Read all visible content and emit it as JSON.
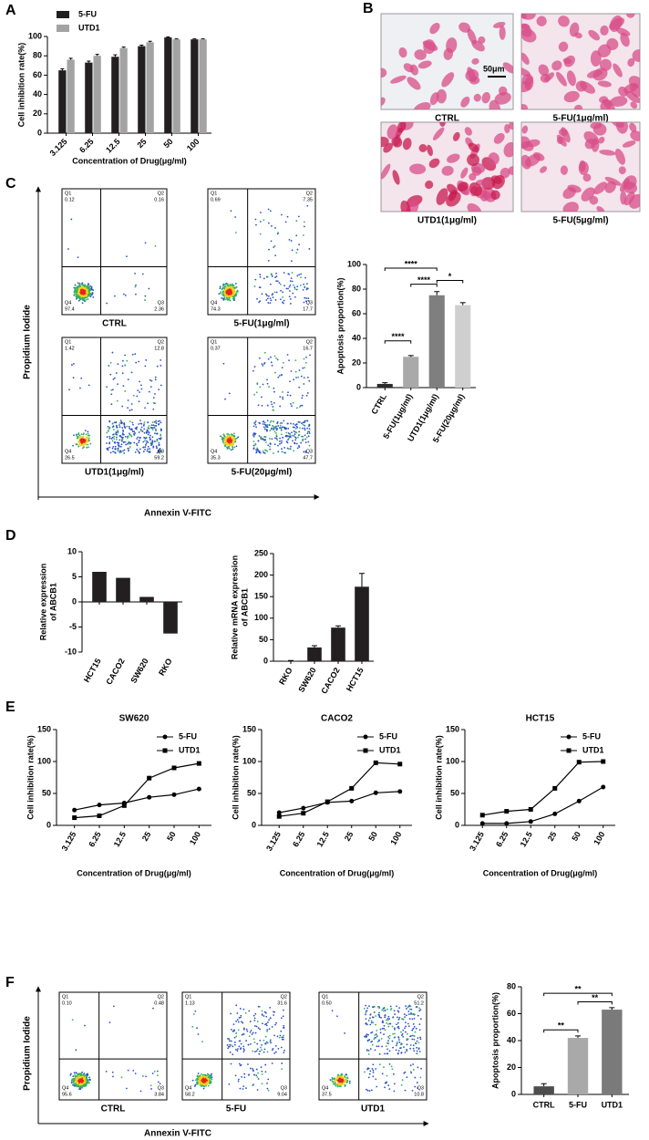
{
  "panel_labels": [
    "A",
    "B",
    "C",
    "D",
    "E",
    "F"
  ],
  "micrographs": {
    "scale_bar": "50μm",
    "captions": [
      "CTRL",
      "5-FU(1μg/ml)",
      "UTD1(1μg/ml)",
      "5-FU(5μg/ml)"
    ]
  },
  "chart_data": [
    {
      "type": "bar",
      "categories": [
        "3.125",
        "6.25",
        "12.5",
        "25",
        "50",
        "100"
      ],
      "series": [
        {
          "name": "5-FU",
          "color": "#231f20",
          "values": [
            65,
            73,
            79,
            90,
            99,
            97
          ],
          "errors": [
            1.5,
            1.5,
            2,
            1,
            0.5,
            0.5
          ]
        },
        {
          "name": "UTD1",
          "color": "#a3a3a3",
          "values": [
            76,
            80,
            88,
            94,
            97,
            97
          ],
          "errors": [
            1.5,
            1.5,
            1,
            1,
            0.5,
            0.5
          ]
        }
      ],
      "ylim": [
        0,
        100
      ],
      "yticks": [
        0,
        20,
        40,
        60,
        80,
        100
      ],
      "legend": "upper left",
      "y_label": "Cell inhibition rate(%)",
      "x_label": "Concentration of Drug(μg/ml)"
    },
    {
      "type": "flow",
      "y_label": "Propidium Iodide",
      "x_label": "Annexin V-FITC",
      "quadrant_names": [
        "Q1",
        "Q2",
        "Q3",
        "Q4"
      ],
      "panels": [
        {
          "name": "CTRL",
          "values": [
            0.12,
            0.16,
            2.36,
            97.4
          ],
          "value_labels": [
            "0.12",
            "0.16",
            "2.36",
            "97.4"
          ]
        },
        {
          "name": "5-FU(1μg/ml)",
          "values": [
            0.69,
            7.35,
            17.7,
            74.3
          ],
          "value_labels": [
            "0.69",
            "7.35",
            "17.7",
            "74.3"
          ]
        },
        {
          "name": "UTD1(1μg/ml)",
          "values": [
            1.42,
            12.8,
            59.2,
            26.5
          ],
          "value_labels": [
            "1.42",
            "12.8",
            "59.2",
            "26.5"
          ]
        },
        {
          "name": "5-FU(20μg/ml)",
          "values": [
            0.37,
            16.7,
            47.7,
            35.3
          ],
          "value_labels": [
            "0.37",
            "16.7",
            "47.7",
            "35.3"
          ]
        }
      ]
    },
    {
      "type": "bar",
      "categories": [
        "CTRL",
        "5-FU(1μg/ml)",
        "UTD1(1μg/ml)",
        "5-FU(20μg/ml)"
      ],
      "values": [
        3,
        25,
        75,
        67
      ],
      "errors": [
        1,
        1,
        3,
        2
      ],
      "colors": [
        "#2b2b2b",
        "#a9a9a9",
        "#7f7f7f",
        "#cfcfcf"
      ],
      "ylim": [
        0,
        100
      ],
      "yticks": [
        0,
        20,
        40,
        60,
        80,
        100
      ],
      "y_label": "Apoptosis proportion(%)",
      "annotations": [
        "****",
        "****",
        "*",
        "****"
      ]
    },
    {
      "type": "bar",
      "categories": [
        "HCT15",
        "CACO2",
        "SW620",
        "RKO"
      ],
      "values": [
        6,
        4.8,
        1,
        -6.3
      ],
      "color": "#231f20",
      "ylim": [
        -10,
        10
      ],
      "yticks": [
        -10,
        -5,
        0,
        5,
        10
      ],
      "y_label": [
        "Relative expression",
        "of ABCB1"
      ]
    },
    {
      "type": "bar",
      "categories": [
        "RKO",
        "SW620",
        "CACO2",
        "HCT15"
      ],
      "values": [
        1,
        32,
        78,
        173
      ],
      "errors": [
        0.5,
        4,
        4,
        31
      ],
      "color": "#231f20",
      "ylim": [
        0,
        250
      ],
      "yticks": [
        0,
        50,
        100,
        150,
        200,
        250
      ],
      "y_label": [
        "Relative mRNA expression",
        "of ABCB1"
      ]
    },
    {
      "type": "line",
      "title": "SW620",
      "categories": [
        "3.125",
        "6.25",
        "12.5",
        "25",
        "50",
        "100"
      ],
      "series": [
        {
          "name": "5-FU",
          "color": "#000000",
          "marker": "circle",
          "values": [
            24,
            32,
            35,
            44,
            48,
            57
          ]
        },
        {
          "name": "UTD1",
          "color": "#000000",
          "marker": "square",
          "values": [
            12,
            15,
            31,
            74,
            90,
            97
          ]
        }
      ],
      "ylim": [
        0,
        150
      ],
      "yticks": [
        0,
        50,
        100,
        150
      ],
      "legend": "upper right",
      "y_label": "Cell inhibition rate(%)",
      "x_label": "Concentration of Drug(μg/ml)"
    },
    {
      "type": "line",
      "title": "CACO2",
      "categories": [
        "3.125",
        "6.25",
        "12.5",
        "25",
        "50",
        "100"
      ],
      "series": [
        {
          "name": "5-FU",
          "color": "#000000",
          "marker": "circle",
          "values": [
            20,
            27,
            36,
            38,
            51,
            53
          ]
        },
        {
          "name": "UTD1",
          "color": "#000000",
          "marker": "square",
          "values": [
            14,
            19,
            37,
            58,
            98,
            96
          ]
        }
      ],
      "ylim": [
        0,
        150
      ],
      "yticks": [
        0,
        50,
        100,
        150
      ],
      "legend": "upper right",
      "y_label": "Cell inhibition rate(%)",
      "x_label": "Concentration of Drug(μg/ml)"
    },
    {
      "type": "line",
      "title": "HCT15",
      "categories": [
        "3.125",
        "6.25",
        "12.5",
        "25",
        "50",
        "100"
      ],
      "series": [
        {
          "name": "5-FU",
          "color": "#000000",
          "marker": "circle",
          "values": [
            3,
            3,
            6,
            18,
            38,
            60
          ]
        },
        {
          "name": "UTD1",
          "color": "#000000",
          "marker": "square",
          "values": [
            16,
            22,
            25,
            58,
            99,
            100
          ]
        }
      ],
      "ylim": [
        0,
        150
      ],
      "yticks": [
        0,
        50,
        100,
        150
      ],
      "legend": "upper right",
      "y_label": "Cell inhibition rate(%)",
      "x_label": "Concentration of Drug(μg/ml)"
    },
    {
      "type": "flow",
      "y_label": "Propidium Iodide",
      "x_label": "Annexin V-FITC",
      "quadrant_names": [
        "Q1",
        "Q2",
        "Q3",
        "Q4"
      ],
      "panels": [
        {
          "name": "CTRL",
          "values": [
            0.1,
            0.48,
            3.84,
            95.6
          ],
          "value_labels": [
            "0.10",
            "0.48",
            "3.84",
            "95.6"
          ]
        },
        {
          "name": "5-FU",
          "values": [
            1.13,
            31.6,
            9.04,
            58.2
          ],
          "value_labels": [
            "1.13",
            "31.6",
            "9.04",
            "58.2"
          ]
        },
        {
          "name": "UTD1",
          "values": [
            0.5,
            51.2,
            10.8,
            37.5
          ],
          "value_labels": [
            "0.50",
            "51.2",
            "10.8",
            "37.5"
          ]
        }
      ]
    },
    {
      "type": "bar",
      "categories": [
        "CTRL",
        "5-FU",
        "UTD1"
      ],
      "values": [
        6,
        42,
        63
      ],
      "errors": [
        2,
        1.5,
        1.5
      ],
      "colors": [
        "#4d4d4d",
        "#a9a9a9",
        "#7a7a7a"
      ],
      "ylim": [
        0,
        80
      ],
      "yticks": [
        0,
        20,
        40,
        60,
        80
      ],
      "y_label": "Apoptosis proportion(%)",
      "annotations": [
        "**",
        "**",
        "**"
      ]
    }
  ]
}
